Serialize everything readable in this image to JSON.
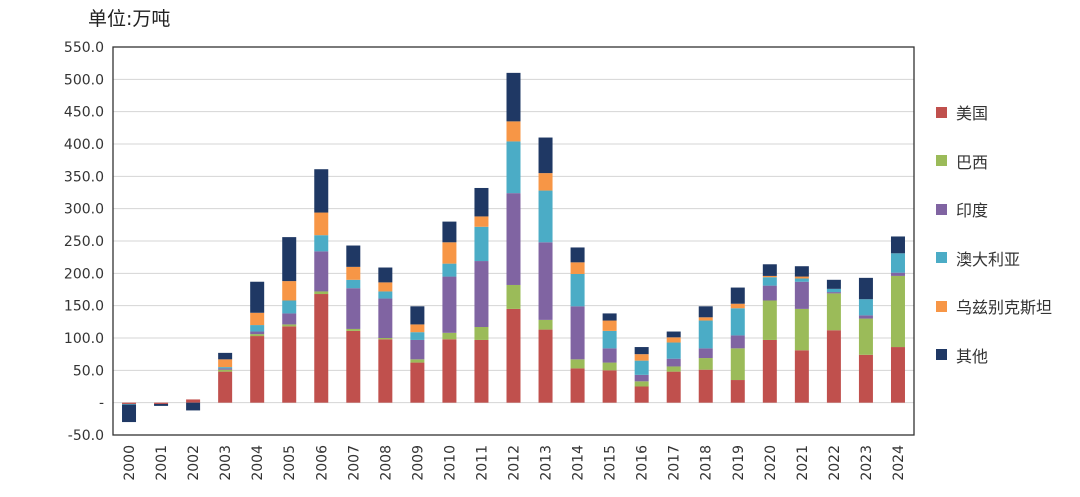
{
  "unit_label": "单位:万吨",
  "chart_data": {
    "type": "bar",
    "stacked": true,
    "categories": [
      "2000",
      "2001",
      "2002",
      "2003",
      "2004",
      "2005",
      "2006",
      "2007",
      "2008",
      "2009",
      "2010",
      "2011",
      "2012",
      "2013",
      "2014",
      "2015",
      "2016",
      "2017",
      "2018",
      "2019",
      "2020",
      "2021",
      "2022",
      "2023",
      "2024"
    ],
    "y_ticks": [
      "550.0",
      "500.0",
      "450.0",
      "400.0",
      "350.0",
      "300.0",
      "250.0",
      "200.0",
      "150.0",
      "100.0",
      "50.0",
      "-",
      "-50.0"
    ],
    "ylim": [
      -50,
      550
    ],
    "grid": true,
    "legend_position": "right",
    "series": [
      {
        "name": "美国",
        "color": "#c0504d",
        "values": [
          -2,
          -2,
          5,
          48,
          103,
          118,
          168,
          111,
          98,
          62,
          98,
          97,
          145,
          113,
          53,
          50,
          25,
          48,
          51,
          35,
          97,
          81,
          112,
          74,
          86
        ]
      },
      {
        "name": "巴西",
        "color": "#9bbb59",
        "values": [
          0,
          0,
          0,
          3,
          3,
          3,
          4,
          3,
          2,
          5,
          10,
          20,
          37,
          15,
          14,
          12,
          8,
          8,
          18,
          49,
          61,
          64,
          57,
          56,
          110
        ]
      },
      {
        "name": "印度",
        "color": "#8064a2",
        "values": [
          0,
          0,
          0,
          2,
          4,
          17,
          62,
          63,
          61,
          30,
          87,
          102,
          142,
          120,
          82,
          22,
          10,
          12,
          15,
          20,
          23,
          42,
          2,
          5,
          5
        ]
      },
      {
        "name": "澳大利亚",
        "color": "#4bacc6",
        "values": [
          -1,
          0,
          0,
          2,
          10,
          20,
          25,
          13,
          11,
          12,
          20,
          53,
          80,
          80,
          50,
          27,
          22,
          25,
          43,
          42,
          13,
          5,
          5,
          25,
          30
        ]
      },
      {
        "name": "乌兹别克斯坦",
        "color": "#f79646",
        "values": [
          0,
          0,
          0,
          12,
          19,
          30,
          35,
          20,
          14,
          12,
          33,
          16,
          31,
          27,
          18,
          16,
          10,
          8,
          5,
          7,
          2,
          3,
          0,
          0,
          0
        ]
      },
      {
        "name": "其他",
        "color": "#1f3864",
        "values": [
          -27,
          -3,
          -12,
          10,
          48,
          68,
          67,
          33,
          23,
          28,
          32,
          44,
          75,
          55,
          23,
          11,
          11,
          9,
          17,
          25,
          18,
          16,
          14,
          33,
          26
        ]
      }
    ]
  }
}
